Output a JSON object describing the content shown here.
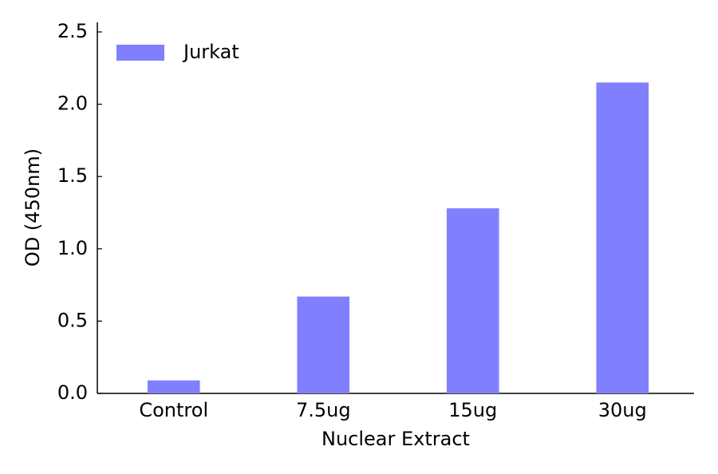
{
  "chart_data": {
    "type": "bar",
    "x_label": "Nuclear Extract",
    "y_label": "OD (450nm)",
    "categories": [
      "Control",
      "7.5ug",
      "15ug",
      "30ug"
    ],
    "series": [
      {
        "name": "Jurkat",
        "color": "#8080ff",
        "values": [
          0.09,
          0.67,
          1.28,
          2.15
        ]
      }
    ],
    "ylim": [
      0,
      2.5
    ],
    "yticks": [
      {
        "value": 0,
        "label": "0.0"
      },
      0.5,
      {
        "value": 1,
        "label": "1.0"
      },
      1.5,
      {
        "value": 2,
        "label": "2.0"
      },
      2.5
    ],
    "legend": "upper left"
  }
}
